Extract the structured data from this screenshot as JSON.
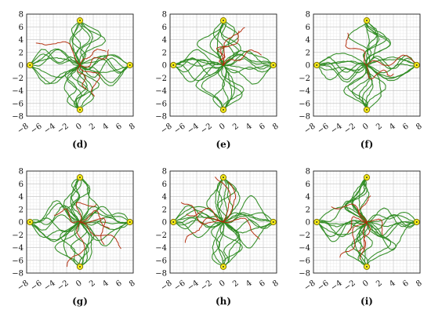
{
  "figure": {
    "background": "#ffffff",
    "colors": {
      "success_trajectory": "#2e8b22",
      "failure_trajectory": "#b22a0a",
      "goal_marker_fill": "#f5ec1a",
      "goal_marker_edge": "#8a7a00",
      "grid_major": "#c8c8c8",
      "grid_minor": "#e6e6e6",
      "axis": "#222222"
    }
  },
  "chart_data": [
    {
      "type": "line",
      "panel_label": "(d)",
      "xlim": [
        -8,
        8
      ],
      "ylim": [
        -8,
        8
      ],
      "xticks": [
        "−8",
        "−6",
        "−4",
        "−2",
        "0",
        "2",
        "4",
        "6",
        "8"
      ],
      "yticks": [
        "8",
        "6",
        "4",
        "2",
        "0",
        "−2",
        "−4",
        "−6",
        "−8"
      ],
      "grid": "on",
      "goals": [
        [
          0,
          7
        ],
        [
          -7.5,
          0
        ],
        [
          7.5,
          0
        ],
        [
          0,
          -7
        ]
      ],
      "series": [
        {
          "category": "success",
          "lines_per_goal": 8
        },
        {
          "category": "failure",
          "lines": 5
        }
      ]
    },
    {
      "type": "line",
      "panel_label": "(e)",
      "xlim": [
        -8,
        8
      ],
      "ylim": [
        -8,
        8
      ],
      "xticks": [
        "−8",
        "−6",
        "−4",
        "−2",
        "0",
        "2",
        "4",
        "6",
        "8"
      ],
      "yticks": [
        "8",
        "6",
        "4",
        "2",
        "0",
        "−2",
        "−4",
        "−6",
        "−8"
      ],
      "grid": "on",
      "goals": [
        [
          0,
          7
        ],
        [
          -7.5,
          0
        ],
        [
          7.5,
          0
        ],
        [
          0,
          -7
        ]
      ],
      "series": [
        {
          "category": "success",
          "lines_per_goal": 8
        },
        {
          "category": "failure",
          "lines": 4
        }
      ]
    },
    {
      "type": "line",
      "panel_label": "(f)",
      "xlim": [
        -8,
        8
      ],
      "ylim": [
        -8,
        8
      ],
      "xticks": [
        "−8",
        "−6",
        "−4",
        "−2",
        "0",
        "2",
        "4",
        "6",
        "8"
      ],
      "yticks": [
        "8",
        "6",
        "4",
        "2",
        "0",
        "−2",
        "−4",
        "−6",
        "−8"
      ],
      "grid": "on",
      "goals": [
        [
          0,
          7
        ],
        [
          -7.5,
          0
        ],
        [
          7.5,
          0
        ],
        [
          0,
          -7
        ]
      ],
      "series": [
        {
          "category": "success",
          "lines_per_goal": 8
        },
        {
          "category": "failure",
          "lines": 3
        }
      ]
    },
    {
      "type": "line",
      "panel_label": "(g)",
      "xlim": [
        -8,
        8
      ],
      "ylim": [
        -8,
        8
      ],
      "xticks": [
        "−8",
        "−6",
        "−4",
        "−2",
        "0",
        "2",
        "4",
        "6",
        "8"
      ],
      "yticks": [
        "8",
        "6",
        "4",
        "2",
        "0",
        "−2",
        "−4",
        "−6",
        "−8"
      ],
      "grid": "on",
      "goals": [
        [
          0,
          7
        ],
        [
          -7.5,
          0
        ],
        [
          7.5,
          0
        ],
        [
          0,
          -7
        ]
      ],
      "series": [
        {
          "category": "success",
          "lines_per_goal": 8
        },
        {
          "category": "failure",
          "lines": 6
        }
      ]
    },
    {
      "type": "line",
      "panel_label": "(h)",
      "xlim": [
        -8,
        8
      ],
      "ylim": [
        -8,
        8
      ],
      "xticks": [
        "−8",
        "−6",
        "−4",
        "−2",
        "0",
        "2",
        "4",
        "6",
        "8"
      ],
      "yticks": [
        "8",
        "6",
        "4",
        "2",
        "0",
        "−2",
        "−4",
        "−6",
        "−8"
      ],
      "grid": "on",
      "goals": [
        [
          0,
          7
        ],
        [
          -7.5,
          0
        ],
        [
          7.5,
          0
        ],
        [
          0,
          -7
        ]
      ],
      "series": [
        {
          "category": "success",
          "lines_per_goal": 8
        },
        {
          "category": "failure",
          "lines": 6
        }
      ]
    },
    {
      "type": "line",
      "panel_label": "(i)",
      "xlim": [
        -8,
        8
      ],
      "ylim": [
        -8,
        8
      ],
      "xticks": [
        "−8",
        "−6",
        "−4",
        "−2",
        "0",
        "2",
        "4",
        "6",
        "8"
      ],
      "yticks": [
        "8",
        "6",
        "4",
        "2",
        "0",
        "−2",
        "−4",
        "−6",
        "−8"
      ],
      "grid": "on",
      "goals": [
        [
          0,
          7
        ],
        [
          -7.5,
          0
        ],
        [
          7.5,
          0
        ],
        [
          0,
          -7
        ]
      ],
      "series": [
        {
          "category": "success",
          "lines_per_goal": 8
        },
        {
          "category": "failure",
          "lines": 7
        }
      ]
    }
  ]
}
